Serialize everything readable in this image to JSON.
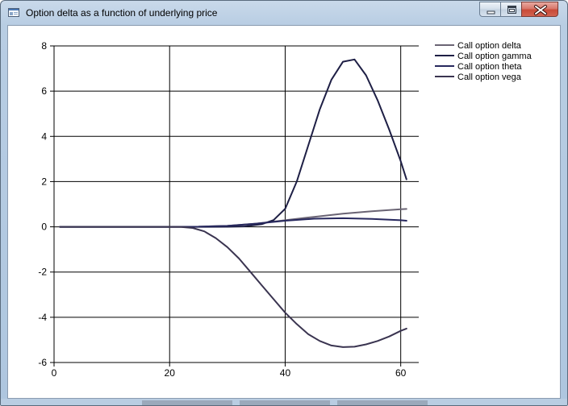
{
  "window": {
    "title": "Option delta as a function of underlying price"
  },
  "chart_data": {
    "type": "line",
    "title": "",
    "xlabel": "",
    "ylabel": "",
    "xlim": [
      0,
      62
    ],
    "ylim": [
      -6,
      8
    ],
    "xticks": [
      0,
      20,
      40,
      60
    ],
    "yticks": [
      -6,
      -4,
      -2,
      0,
      2,
      4,
      6,
      8
    ],
    "grid": true,
    "legend_position": "top-right",
    "colors": {
      "delta": "#6a6474",
      "gamma": "#1e1f45",
      "theta": "#27285e",
      "vega": "#3a3450"
    },
    "series": [
      {
        "name": "Call option delta",
        "x": [
          1,
          5,
          10,
          15,
          20,
          25,
          30,
          35,
          40,
          45,
          50,
          55,
          60,
          61
        ],
        "y": [
          0,
          0,
          0,
          0,
          0,
          0.005,
          0.04,
          0.14,
          0.29,
          0.44,
          0.58,
          0.69,
          0.78,
          0.79
        ]
      },
      {
        "name": "Call option gamma",
        "x": [
          1,
          5,
          10,
          15,
          20,
          25,
          30,
          33,
          36,
          38,
          40,
          42,
          44,
          46,
          48,
          50,
          52,
          54,
          56,
          58,
          60,
          61
        ],
        "y": [
          0,
          0,
          0,
          0,
          0,
          0,
          0.001,
          0.02,
          0.12,
          0.3,
          0.8,
          2.0,
          3.6,
          5.2,
          6.5,
          7.3,
          7.4,
          6.7,
          5.6,
          4.3,
          2.9,
          2.1
        ]
      },
      {
        "name": "Call option theta",
        "x": [
          1,
          5,
          10,
          15,
          20,
          25,
          30,
          35,
          40,
          45,
          50,
          55,
          60,
          61
        ],
        "y": [
          0,
          0,
          0,
          0,
          0,
          0.005,
          0.04,
          0.14,
          0.27,
          0.36,
          0.38,
          0.35,
          0.29,
          0.27
        ]
      },
      {
        "name": "Call option vega",
        "x": [
          1,
          5,
          10,
          15,
          20,
          22,
          24,
          26,
          28,
          30,
          32,
          34,
          36,
          38,
          40,
          42,
          44,
          46,
          48,
          50,
          52,
          54,
          56,
          58,
          60,
          61
        ],
        "y": [
          0,
          0,
          0,
          0,
          0,
          -0.005,
          -0.05,
          -0.2,
          -0.5,
          -0.9,
          -1.4,
          -2.0,
          -2.6,
          -3.2,
          -3.8,
          -4.3,
          -4.75,
          -5.05,
          -5.25,
          -5.32,
          -5.3,
          -5.2,
          -5.05,
          -4.85,
          -4.6,
          -4.5
        ]
      }
    ]
  }
}
